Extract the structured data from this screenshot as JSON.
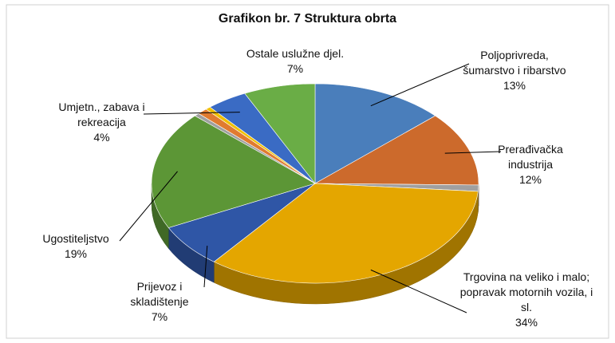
{
  "chart_data": {
    "type": "pie3d",
    "title": "Grafikon br. 7 Struktura obrta",
    "categories": [
      "Poljoprivreda, šumarstvo i ribarstvo",
      "Prerađivačka industrija",
      null,
      "Trgovina na veliko i malo; popravak motornih vozila, i sl.",
      "Prijevoz i skladištenje",
      "Ugostiteljstvo",
      null,
      null,
      null,
      "Umjetn., zabava i rekreacija",
      "Ostale uslužne djel."
    ],
    "values": [
      13,
      12,
      1,
      34,
      7,
      19,
      0.5,
      1,
      0.5,
      4,
      7
    ],
    "value_labels": [
      "13%",
      "12%",
      null,
      "34%",
      "7%",
      "19%",
      null,
      null,
      null,
      "4%",
      "7%"
    ],
    "colors": [
      "#4a7ebb",
      "#cc6a2c",
      "#a0a0a0",
      "#e4a600",
      "#2f56a6",
      "#5c9636",
      "#a0a0a0",
      "#e07b30",
      "#f0c000",
      "#3a6bc4",
      "#6aad46"
    ]
  }
}
